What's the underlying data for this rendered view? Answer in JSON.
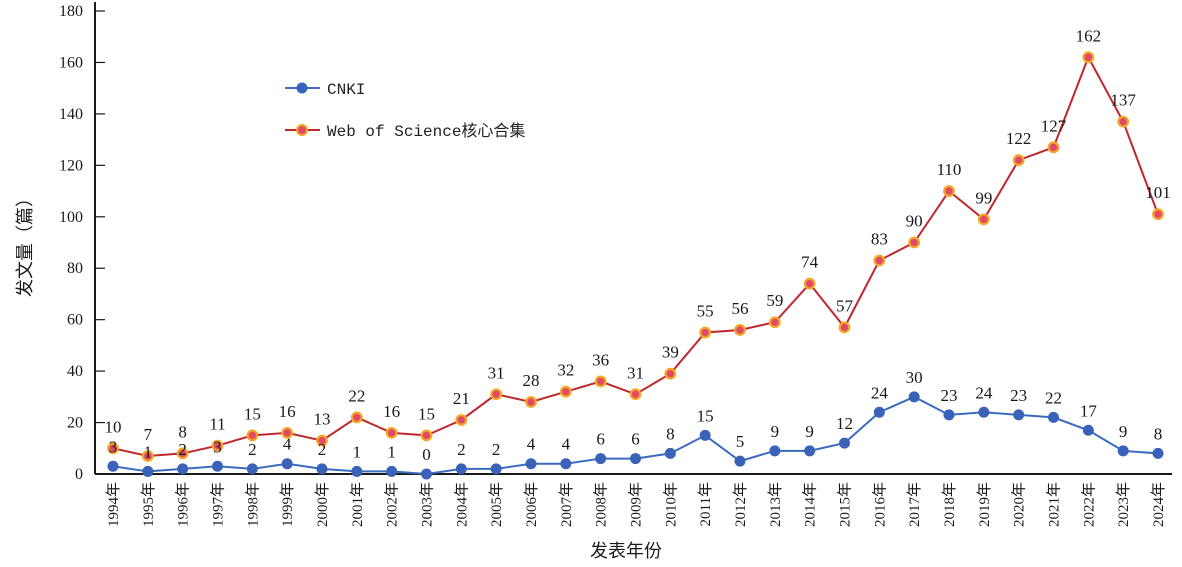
{
  "chart_data": {
    "type": "line",
    "title": "",
    "xlabel": "发表年份",
    "ylabel": "发文量（篇）",
    "ylim": [
      0,
      180
    ],
    "yticks": [
      0,
      20,
      40,
      60,
      80,
      100,
      120,
      140,
      160,
      180
    ],
    "grid": false,
    "legend_position": "top-left",
    "categories": [
      "1994年",
      "1995年",
      "1996年",
      "1997年",
      "1998年",
      "1999年",
      "2000年",
      "2001年",
      "2002年",
      "2003年",
      "2004年",
      "2005年",
      "2006年",
      "2007年",
      "2008年",
      "2009年",
      "2010年",
      "2011年",
      "2012年",
      "2013年",
      "2014年",
      "2015年",
      "2016年",
      "2017年",
      "2018年",
      "2019年",
      "2020年",
      "2021年",
      "2022年",
      "2023年",
      "2024年"
    ],
    "series": [
      {
        "name": "CNKI",
        "color": "#3a6bbf",
        "marker_fill": "#3a62b8",
        "marker_stroke": "#3a62b8",
        "values": [
          3,
          1,
          2,
          3,
          2,
          4,
          2,
          1,
          1,
          0,
          2,
          2,
          4,
          4,
          6,
          6,
          8,
          15,
          5,
          9,
          9,
          12,
          24,
          30,
          23,
          24,
          23,
          22,
          17,
          9,
          8
        ]
      },
      {
        "name": "Web of Science核心合集",
        "color": "#c0272d",
        "marker_fill": "#e04a6a",
        "marker_stroke": "#f5a623",
        "values": [
          10,
          7,
          8,
          11,
          15,
          16,
          13,
          22,
          16,
          15,
          21,
          31,
          28,
          32,
          36,
          31,
          39,
          55,
          56,
          59,
          74,
          57,
          83,
          90,
          110,
          99,
          122,
          127,
          162,
          137,
          101
        ]
      }
    ]
  }
}
